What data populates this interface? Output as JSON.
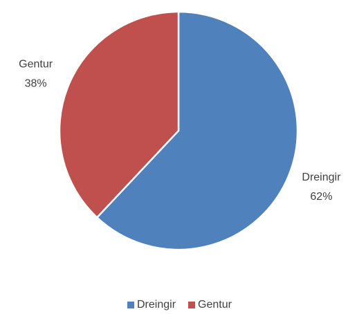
{
  "chart_data": {
    "type": "pie",
    "categories": [
      "Dreingir",
      "Gentur"
    ],
    "values": [
      62,
      38
    ],
    "value_labels": [
      "62%",
      "38%"
    ],
    "colors": [
      "#4f81bd",
      "#c0504d"
    ],
    "legend": "bottom"
  }
}
